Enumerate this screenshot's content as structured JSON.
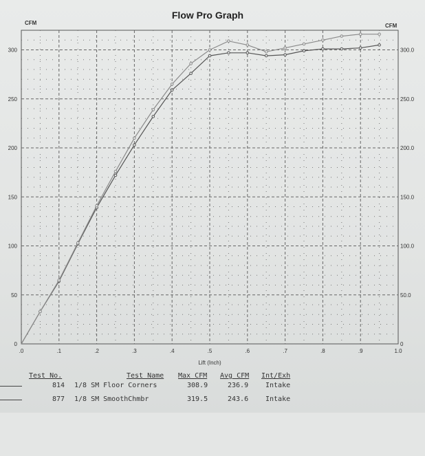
{
  "chart_data": {
    "type": "line",
    "title": "Flow Pro Graph",
    "ylabel_left": "CFM",
    "ylabel_right": "CFM",
    "xlabel": "Lift (Inch)",
    "xlim": [
      0,
      1.0
    ],
    "ylim": [
      0,
      320
    ],
    "x_ticks": [
      ".0",
      ".1",
      ".2",
      ".3",
      ".4",
      ".5",
      ".6",
      ".7",
      ".8",
      ".9",
      "1.0"
    ],
    "y_left_ticks": [
      {
        "v": 0,
        "t": "0"
      },
      {
        "v": 50,
        "t": "50"
      },
      {
        "v": 100,
        "t": "100"
      },
      {
        "v": 150,
        "t": "150"
      },
      {
        "v": 200,
        "t": "200"
      },
      {
        "v": 250,
        "t": "250"
      },
      {
        "v": 300,
        "t": "300"
      }
    ],
    "y_right_ticks": [
      {
        "v": 0,
        "t": "0"
      },
      {
        "v": 50,
        "t": "50.0"
      },
      {
        "v": 100,
        "t": "100.0"
      },
      {
        "v": 150,
        "t": "150.0"
      },
      {
        "v": 200,
        "t": "200.0"
      },
      {
        "v": 250,
        "t": "250.0"
      },
      {
        "v": 300,
        "t": "300.0"
      }
    ],
    "grid": true,
    "series": [
      {
        "color": "#555555",
        "x": [
          0,
          0.05,
          0.1,
          0.15,
          0.2,
          0.25,
          0.3,
          0.35,
          0.4,
          0.45,
          0.5,
          0.55,
          0.6,
          0.65,
          0.7,
          0.75,
          0.8,
          0.85,
          0.9,
          0.95
        ],
        "y": [
          0,
          33,
          64,
          102,
          139,
          172,
          203,
          232,
          259,
          276,
          294,
          297,
          297,
          294,
          295,
          299,
          301,
          301,
          302,
          305
        ]
      },
      {
        "color": "#8a8a8a",
        "x": [
          0,
          0.05,
          0.1,
          0.15,
          0.2,
          0.25,
          0.3,
          0.35,
          0.4,
          0.45,
          0.5,
          0.55,
          0.6,
          0.65,
          0.7,
          0.75,
          0.8,
          0.85,
          0.9,
          0.95
        ],
        "y": [
          0,
          33,
          65,
          103,
          141,
          176,
          210,
          239,
          265,
          286,
          300,
          309,
          305,
          298,
          302,
          306,
          310,
          314,
          316,
          316
        ]
      }
    ]
  },
  "results_table": {
    "headers": {
      "test_no": "Test No.",
      "test_name": "Test Name",
      "max_cfm": "Max CFM",
      "avg_cfm": "Avg CFM",
      "int_exh": "Int/Exh"
    },
    "rows": [
      {
        "test_no": "814",
        "test_name": "1/8 SM Floor Corners",
        "max_cfm": "308.9",
        "avg_cfm": "236.9",
        "int_exh": "Intake"
      },
      {
        "test_no": "877",
        "test_name": "1/8 SM SmoothChmbr",
        "max_cfm": "319.5",
        "avg_cfm": "243.6",
        "int_exh": "Intake"
      }
    ]
  }
}
